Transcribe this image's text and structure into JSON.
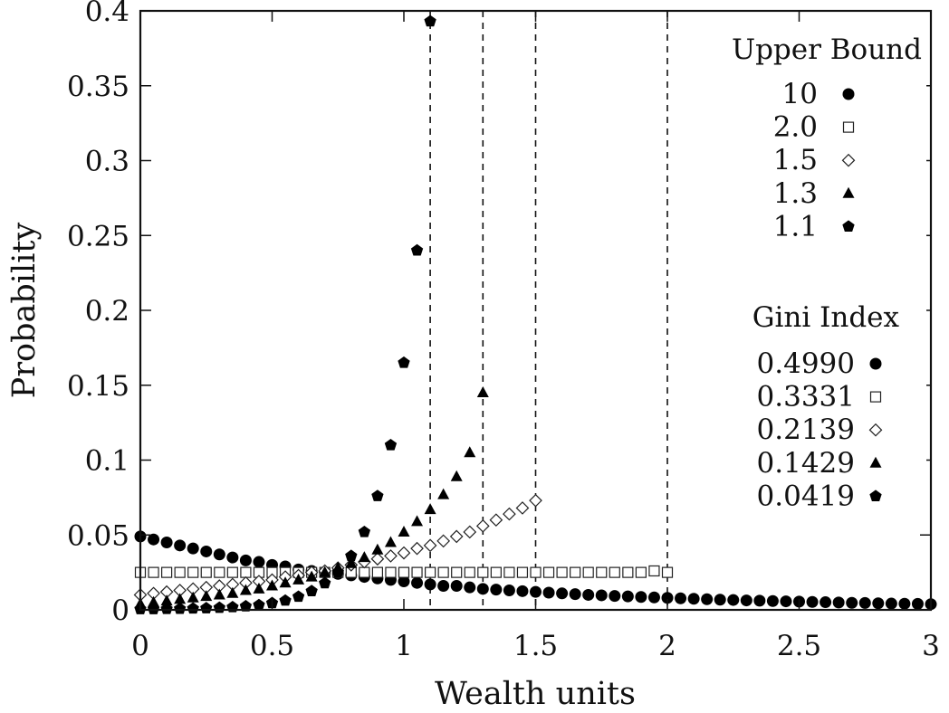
{
  "chart_data": {
    "type": "scatter",
    "title": "",
    "xlabel": "Wealth units",
    "ylabel": "Probability",
    "xlim": [
      0,
      3
    ],
    "ylim": [
      0,
      0.4
    ],
    "xticks": [
      "0",
      "0.5",
      "1",
      "1.5",
      "2",
      "2.5",
      "3"
    ],
    "yticks": [
      "0",
      "0.05",
      "0.1",
      "0.15",
      "0.2",
      "0.25",
      "0.3",
      "0.35",
      "0.4"
    ],
    "grid": false,
    "legend_placement": "top-right",
    "legend_groups": [
      {
        "title": "Upper Bound",
        "labels": [
          "10",
          "2.0",
          "1.5",
          "1.3",
          "1.1"
        ]
      },
      {
        "title": "Gini Index",
        "labels": [
          "0.4990",
          "0.3331",
          "0.2139",
          "0.1429",
          "0.0419"
        ]
      }
    ],
    "vlines": [
      1.1,
      1.3,
      1.5,
      2.0
    ],
    "series": [
      {
        "marker": "filled-circle",
        "x": [
          0.0,
          0.05,
          0.1,
          0.15,
          0.2,
          0.25,
          0.3,
          0.35,
          0.4,
          0.45,
          0.5,
          0.55,
          0.6,
          0.65,
          0.7,
          0.75,
          0.8,
          0.85,
          0.9,
          0.95,
          1.0,
          1.05,
          1.1,
          1.15,
          1.2,
          1.25,
          1.3,
          1.35,
          1.4,
          1.45,
          1.5,
          1.55,
          1.6,
          1.65,
          1.7,
          1.75,
          1.8,
          1.85,
          1.9,
          1.95,
          2.0,
          2.05,
          2.1,
          2.15,
          2.2,
          2.25,
          2.3,
          2.35,
          2.4,
          2.45,
          2.5,
          2.55,
          2.6,
          2.65,
          2.7,
          2.75,
          2.8,
          2.85,
          2.9,
          2.95,
          3.0
        ],
        "y": [
          0.049,
          0.047,
          0.045,
          0.043,
          0.041,
          0.039,
          0.037,
          0.035,
          0.033,
          0.032,
          0.03,
          0.029,
          0.027,
          0.026,
          0.025,
          0.024,
          0.023,
          0.022,
          0.021,
          0.02,
          0.019,
          0.018,
          0.017,
          0.016,
          0.016,
          0.015,
          0.014,
          0.0135,
          0.013,
          0.0125,
          0.012,
          0.0115,
          0.011,
          0.0105,
          0.01,
          0.0097,
          0.0093,
          0.009,
          0.0086,
          0.0083,
          0.008,
          0.0077,
          0.0074,
          0.0071,
          0.0068,
          0.0066,
          0.0063,
          0.0061,
          0.0059,
          0.0057,
          0.0055,
          0.0053,
          0.0051,
          0.0049,
          0.0047,
          0.0046,
          0.0044,
          0.0042,
          0.0041,
          0.004,
          0.0038
        ]
      },
      {
        "marker": "open-square",
        "x": [
          0.0,
          0.05,
          0.1,
          0.15,
          0.2,
          0.25,
          0.3,
          0.35,
          0.4,
          0.45,
          0.5,
          0.55,
          0.6,
          0.65,
          0.7,
          0.75,
          0.8,
          0.85,
          0.9,
          0.95,
          1.0,
          1.05,
          1.1,
          1.15,
          1.2,
          1.25,
          1.3,
          1.35,
          1.4,
          1.45,
          1.5,
          1.55,
          1.6,
          1.65,
          1.7,
          1.75,
          1.8,
          1.85,
          1.9,
          1.95,
          2.0
        ],
        "y": [
          0.025,
          0.025,
          0.025,
          0.025,
          0.025,
          0.025,
          0.025,
          0.025,
          0.025,
          0.025,
          0.025,
          0.025,
          0.025,
          0.025,
          0.025,
          0.025,
          0.025,
          0.025,
          0.025,
          0.025,
          0.025,
          0.025,
          0.025,
          0.025,
          0.025,
          0.025,
          0.025,
          0.025,
          0.025,
          0.025,
          0.025,
          0.025,
          0.025,
          0.025,
          0.025,
          0.025,
          0.025,
          0.025,
          0.025,
          0.026,
          0.025
        ]
      },
      {
        "marker": "open-diamond",
        "x": [
          0.0,
          0.05,
          0.1,
          0.15,
          0.2,
          0.25,
          0.3,
          0.35,
          0.4,
          0.45,
          0.5,
          0.55,
          0.6,
          0.65,
          0.7,
          0.75,
          0.8,
          0.85,
          0.9,
          0.95,
          1.0,
          1.05,
          1.1,
          1.15,
          1.2,
          1.25,
          1.3,
          1.35,
          1.4,
          1.45,
          1.5
        ],
        "y": [
          0.01,
          0.011,
          0.012,
          0.013,
          0.014,
          0.015,
          0.016,
          0.017,
          0.018,
          0.019,
          0.02,
          0.022,
          0.023,
          0.025,
          0.026,
          0.028,
          0.03,
          0.032,
          0.034,
          0.036,
          0.038,
          0.041,
          0.043,
          0.046,
          0.049,
          0.052,
          0.056,
          0.06,
          0.064,
          0.068,
          0.073
        ]
      },
      {
        "marker": "filled-triangle",
        "x": [
          0.0,
          0.05,
          0.1,
          0.15,
          0.2,
          0.25,
          0.3,
          0.35,
          0.4,
          0.45,
          0.5,
          0.55,
          0.6,
          0.65,
          0.7,
          0.75,
          0.8,
          0.85,
          0.9,
          0.95,
          1.0,
          1.05,
          1.1,
          1.15,
          1.2,
          1.25,
          1.3
        ],
        "y": [
          0.004,
          0.005,
          0.006,
          0.007,
          0.008,
          0.009,
          0.01,
          0.011,
          0.013,
          0.014,
          0.016,
          0.018,
          0.02,
          0.022,
          0.025,
          0.028,
          0.031,
          0.035,
          0.04,
          0.045,
          0.052,
          0.059,
          0.067,
          0.077,
          0.089,
          0.105,
          0.145
        ]
      },
      {
        "marker": "filled-pentagon",
        "x": [
          0.0,
          0.05,
          0.1,
          0.15,
          0.2,
          0.25,
          0.3,
          0.35,
          0.4,
          0.45,
          0.5,
          0.55,
          0.6,
          0.65,
          0.7,
          0.75,
          0.8,
          0.85,
          0.9,
          0.95,
          1.0,
          1.05,
          1.1
        ],
        "y": [
          0.0005,
          0.0005,
          0.0006,
          0.0007,
          0.0009,
          0.0011,
          0.0014,
          0.0018,
          0.0024,
          0.0032,
          0.0045,
          0.0062,
          0.0088,
          0.0125,
          0.0178,
          0.025,
          0.036,
          0.052,
          0.076,
          0.11,
          0.165,
          0.24,
          0.393
        ]
      }
    ]
  }
}
